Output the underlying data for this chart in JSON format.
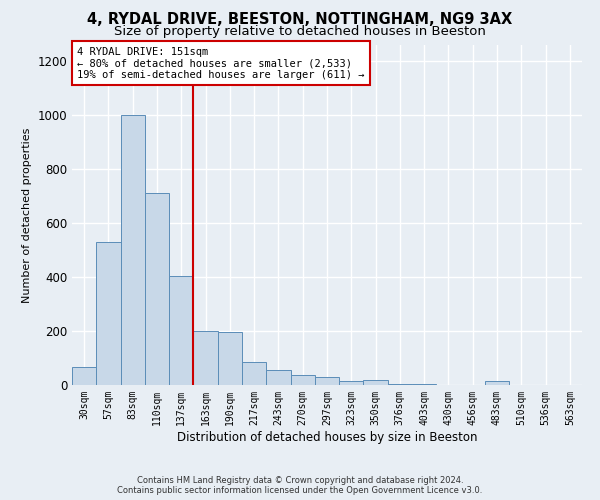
{
  "title": "4, RYDAL DRIVE, BEESTON, NOTTINGHAM, NG9 3AX",
  "subtitle": "Size of property relative to detached houses in Beeston",
  "xlabel": "Distribution of detached houses by size in Beeston",
  "ylabel": "Number of detached properties",
  "categories": [
    "30sqm",
    "57sqm",
    "83sqm",
    "110sqm",
    "137sqm",
    "163sqm",
    "190sqm",
    "217sqm",
    "243sqm",
    "270sqm",
    "297sqm",
    "323sqm",
    "350sqm",
    "376sqm",
    "403sqm",
    "430sqm",
    "456sqm",
    "483sqm",
    "510sqm",
    "536sqm",
    "563sqm"
  ],
  "values": [
    65,
    530,
    1000,
    710,
    405,
    200,
    197,
    85,
    55,
    38,
    28,
    15,
    18,
    5,
    2,
    1,
    1,
    14,
    1,
    0,
    0
  ],
  "bar_color": "#c8d8e8",
  "bar_edge_color": "#5b8db8",
  "red_line_index": 5,
  "annotation_line1": "4 RYDAL DRIVE: 151sqm",
  "annotation_line2": "← 80% of detached houses are smaller (2,533)",
  "annotation_line3": "19% of semi-detached houses are larger (611) →",
  "annotation_box_color": "#ffffff",
  "annotation_box_edge": "#cc0000",
  "footer_line1": "Contains HM Land Registry data © Crown copyright and database right 2024.",
  "footer_line2": "Contains public sector information licensed under the Open Government Licence v3.0.",
  "ylim": [
    0,
    1260
  ],
  "yticks": [
    0,
    200,
    400,
    600,
    800,
    1000,
    1200
  ],
  "background_color": "#e8eef4",
  "grid_color": "#ffffff",
  "title_fontsize": 10.5,
  "subtitle_fontsize": 9.5
}
